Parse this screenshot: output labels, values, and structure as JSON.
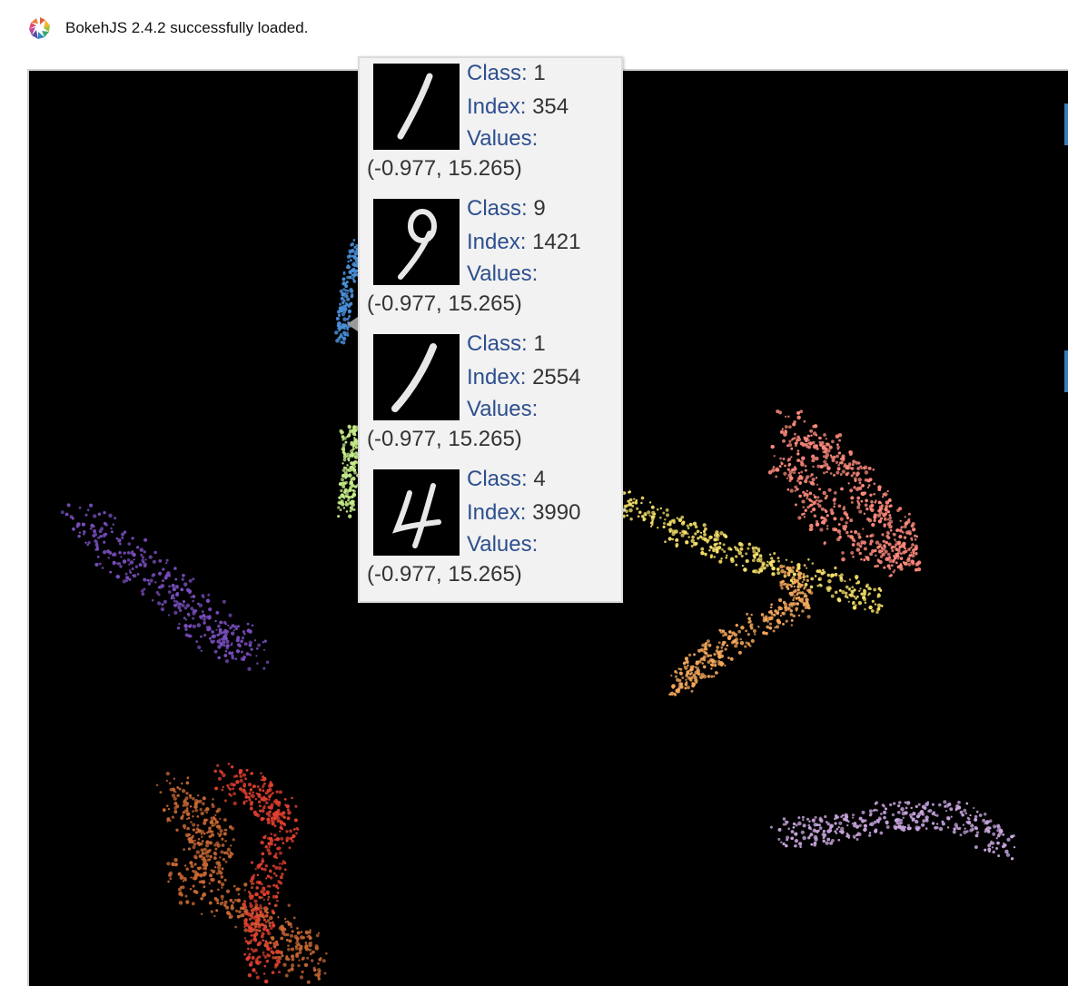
{
  "banner": {
    "logo_icon": "bokeh-logo-icon",
    "text": "BokehJS 2.4.2 successfully loaded."
  },
  "plot": {
    "background": "#000000",
    "cluster_colors": {
      "class_0": "#4a90d9",
      "class_1": "#ffffff",
      "class_2": "#ff8b7d",
      "class_3": "#f9e36b",
      "class_4": "#f5a85c",
      "class_5": "#7a4fbf",
      "class_6": "#c7ef8a",
      "class_7": "#e14030",
      "class_8": "#c76834",
      "class_9": "#c9a7e0"
    }
  },
  "tooltip": {
    "labels": {
      "class": "Class:",
      "index": "Index:",
      "values": "Values:"
    },
    "items": [
      {
        "class": "1",
        "index": "354",
        "values": "(-0.977, 15.265)",
        "digit_icon": "digit-1-icon"
      },
      {
        "class": "9",
        "index": "1421",
        "values": "(-0.977, 15.265)",
        "digit_icon": "digit-9-icon"
      },
      {
        "class": "1",
        "index": "2554",
        "values": "(-0.977, 15.265)",
        "digit_icon": "digit-1-icon"
      },
      {
        "class": "4",
        "index": "3990",
        "values": "(-0.977, 15.265)",
        "digit_icon": "digit-4-icon"
      }
    ]
  }
}
